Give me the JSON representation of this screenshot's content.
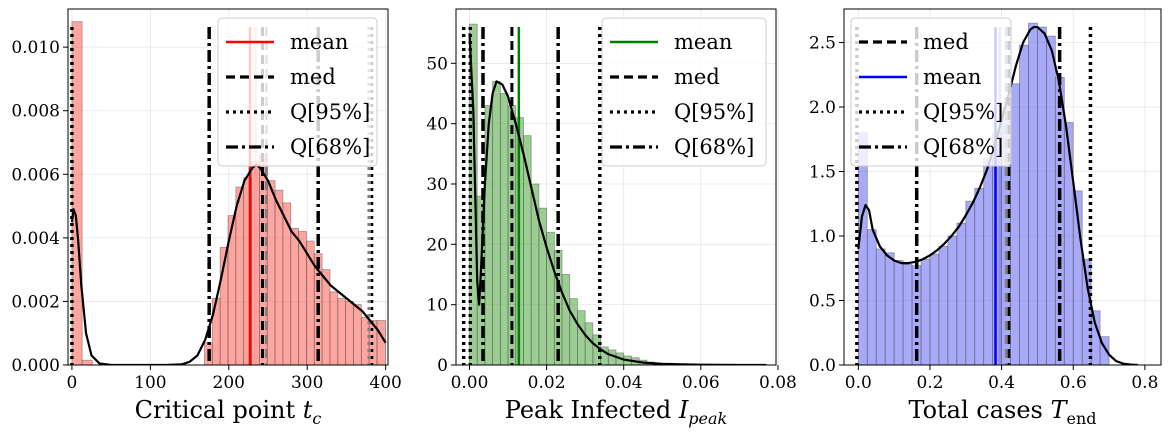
{
  "chart_data": [
    {
      "type": "histogram",
      "xlabel_main": "Critical point ",
      "xlabel_sym": "t",
      "xlabel_sub": "c",
      "xlim": [
        -5,
        403
      ],
      "ylim": [
        0,
        0.0112
      ],
      "xticks": [
        0,
        100,
        200,
        300,
        400
      ],
      "xtick_labels": [
        "0",
        "100",
        "200",
        "300",
        "400"
      ],
      "yticks": [
        0,
        0.002,
        0.004,
        0.006,
        0.008,
        0.01
      ],
      "ytick_labels": [
        "0.000",
        "0.002",
        "0.004",
        "0.006",
        "0.008",
        "0.010"
      ],
      "grid": true,
      "color": "#ff6961",
      "bins": [
        {
          "x0": 0,
          "x1": 13,
          "y": 0.0108
        },
        {
          "x0": 13,
          "x1": 26,
          "y": 0.00015
        },
        {
          "x0": 169,
          "x1": 179,
          "y": 0.0007
        },
        {
          "x0": 179,
          "x1": 189,
          "y": 0.0021
        },
        {
          "x0": 189,
          "x1": 199,
          "y": 0.0037
        },
        {
          "x0": 199,
          "x1": 209,
          "y": 0.0047
        },
        {
          "x0": 209,
          "x1": 219,
          "y": 0.0056
        },
        {
          "x0": 219,
          "x1": 229,
          "y": 0.0059
        },
        {
          "x0": 229,
          "x1": 239,
          "y": 0.0064
        },
        {
          "x0": 239,
          "x1": 249,
          "y": 0.0066
        },
        {
          "x0": 249,
          "x1": 259,
          "y": 0.0058
        },
        {
          "x0": 259,
          "x1": 269,
          "y": 0.0055
        },
        {
          "x0": 269,
          "x1": 279,
          "y": 0.0051
        },
        {
          "x0": 279,
          "x1": 289,
          "y": 0.0043
        },
        {
          "x0": 289,
          "x1": 299,
          "y": 0.0042
        },
        {
          "x0": 299,
          "x1": 309,
          "y": 0.0039
        },
        {
          "x0": 309,
          "x1": 319,
          "y": 0.0035
        },
        {
          "x0": 319,
          "x1": 329,
          "y": 0.003
        },
        {
          "x0": 329,
          "x1": 339,
          "y": 0.0023
        },
        {
          "x0": 339,
          "x1": 349,
          "y": 0.0021
        },
        {
          "x0": 349,
          "x1": 359,
          "y": 0.002
        },
        {
          "x0": 359,
          "x1": 369,
          "y": 0.0019
        },
        {
          "x0": 369,
          "x1": 379,
          "y": 0.0015
        },
        {
          "x0": 379,
          "x1": 389,
          "y": 0.0014
        },
        {
          "x0": 389,
          "x1": 400,
          "y": 0.0014
        }
      ],
      "kde": {
        "x": [
          0,
          2,
          5,
          8,
          12,
          18,
          25,
          35,
          50,
          80,
          120,
          140,
          150,
          160,
          170,
          180,
          190,
          200,
          210,
          220,
          230,
          235,
          240,
          250,
          260,
          270,
          280,
          290,
          300,
          310,
          320,
          330,
          340,
          350,
          360,
          370,
          380,
          390,
          400
        ],
        "y": [
          0.0045,
          0.0049,
          0.0047,
          0.0039,
          0.0025,
          0.001,
          0.0003,
          5e-05,
          0,
          0,
          0,
          2e-05,
          0.0001,
          0.0003,
          0.0008,
          0.0016,
          0.0027,
          0.0039,
          0.005,
          0.0058,
          0.0062,
          0.0063,
          0.0062,
          0.0058,
          0.0052,
          0.0047,
          0.0042,
          0.0039,
          0.0035,
          0.0031,
          0.0028,
          0.0025,
          0.0023,
          0.0021,
          0.0019,
          0.0017,
          0.0014,
          0.0011,
          0.0007
        ]
      },
      "vlines": [
        {
          "kind": "mean",
          "x": 227,
          "color": "#ff0000"
        },
        {
          "kind": "mean-faint",
          "x": 234,
          "color": "#ff9a9a"
        },
        {
          "kind": "med",
          "x": 243
        },
        {
          "kind": "q95",
          "x": 0
        },
        {
          "kind": "q95",
          "x": 382
        },
        {
          "kind": "q95-faint",
          "x": 379
        },
        {
          "kind": "q68",
          "x": 175
        },
        {
          "kind": "q68",
          "x": 314
        },
        {
          "kind": "med-faint",
          "x": 248
        }
      ],
      "legend": {
        "position": "top-right",
        "entries": [
          {
            "label": "mean",
            "style": "solid",
            "color": "#ff0000"
          },
          {
            "label": "med",
            "style": "dashed",
            "color": "#000000"
          },
          {
            "label": "Q[95%]",
            "style": "dotted",
            "color": "#000000"
          },
          {
            "label": "Q[68%]",
            "style": "dashdot",
            "color": "#000000"
          }
        ]
      }
    },
    {
      "type": "histogram",
      "xlabel_main": "Peak Infected ",
      "xlabel_sym": "I",
      "xlabel_sub": "peak",
      "xlim": [
        -0.0035,
        0.0795
      ],
      "ylim": [
        0,
        59
      ],
      "xticks": [
        0,
        0.02,
        0.04,
        0.06,
        0.08
      ],
      "xtick_labels": [
        "0.00",
        "0.02",
        "0.04",
        "0.06",
        "0.08"
      ],
      "yticks": [
        0,
        10,
        20,
        30,
        40,
        50
      ],
      "ytick_labels": [
        "0",
        "10",
        "20",
        "30",
        "40",
        "50"
      ],
      "grid": true,
      "color": "#5aab4b",
      "bins": [
        {
          "x0": 0,
          "x1": 0.002,
          "y": 56.5
        },
        {
          "x0": 0.002,
          "x1": 0.004,
          "y": 28
        },
        {
          "x0": 0.004,
          "x1": 0.006,
          "y": 43
        },
        {
          "x0": 0.006,
          "x1": 0.008,
          "y": 47
        },
        {
          "x0": 0.008,
          "x1": 0.01,
          "y": 45
        },
        {
          "x0": 0.01,
          "x1": 0.012,
          "y": 43
        },
        {
          "x0": 0.012,
          "x1": 0.014,
          "y": 41
        },
        {
          "x0": 0.014,
          "x1": 0.016,
          "y": 38
        },
        {
          "x0": 0.016,
          "x1": 0.018,
          "y": 30
        },
        {
          "x0": 0.018,
          "x1": 0.02,
          "y": 26
        },
        {
          "x0": 0.02,
          "x1": 0.022,
          "y": 22
        },
        {
          "x0": 0.022,
          "x1": 0.024,
          "y": 19
        },
        {
          "x0": 0.024,
          "x1": 0.026,
          "y": 15
        },
        {
          "x0": 0.026,
          "x1": 0.028,
          "y": 11
        },
        {
          "x0": 0.028,
          "x1": 0.03,
          "y": 9
        },
        {
          "x0": 0.03,
          "x1": 0.032,
          "y": 7
        },
        {
          "x0": 0.032,
          "x1": 0.034,
          "y": 5
        },
        {
          "x0": 0.034,
          "x1": 0.036,
          "y": 3
        },
        {
          "x0": 0.036,
          "x1": 0.038,
          "y": 2.5
        },
        {
          "x0": 0.038,
          "x1": 0.04,
          "y": 2
        },
        {
          "x0": 0.04,
          "x1": 0.042,
          "y": 1.5
        },
        {
          "x0": 0.042,
          "x1": 0.044,
          "y": 1.2
        },
        {
          "x0": 0.044,
          "x1": 0.046,
          "y": 0.8
        },
        {
          "x0": 0.046,
          "x1": 0.048,
          "y": 0.5
        },
        {
          "x0": 0.048,
          "x1": 0.05,
          "y": 0.3
        }
      ],
      "kde": {
        "x": [
          0,
          0.001,
          0.002,
          0.0025,
          0.003,
          0.004,
          0.005,
          0.006,
          0.007,
          0.0085,
          0.01,
          0.012,
          0.014,
          0.016,
          0.018,
          0.02,
          0.022,
          0.024,
          0.026,
          0.028,
          0.03,
          0.032,
          0.034,
          0.036,
          0.04,
          0.045,
          0.05,
          0.055,
          0.06,
          0.065,
          0.07,
          0.077
        ],
        "y": [
          55,
          42,
          14,
          10,
          16,
          30,
          40,
          45,
          47,
          46.5,
          44.5,
          40,
          35,
          29.5,
          24,
          19.5,
          15.5,
          12,
          9,
          6.8,
          5,
          3.6,
          2.6,
          1.8,
          0.9,
          0.4,
          0.2,
          0.1,
          0.05,
          0.02,
          0.01,
          0
        ]
      },
      "vlines": [
        {
          "kind": "mean",
          "x": 0.0128,
          "color": "#008000"
        },
        {
          "kind": "med",
          "x": 0.011
        },
        {
          "kind": "q95",
          "x": -0.0015
        },
        {
          "kind": "q95",
          "x": 0.0338
        },
        {
          "kind": "q95",
          "x": 0.0002
        },
        {
          "kind": "q68",
          "x": 0.0035
        },
        {
          "kind": "q68",
          "x": 0.023
        }
      ],
      "legend": {
        "position": "top-right",
        "entries": [
          {
            "label": "mean",
            "style": "solid",
            "color": "#008000"
          },
          {
            "label": "med",
            "style": "dashed",
            "color": "#000000"
          },
          {
            "label": "Q[95%]",
            "style": "dotted",
            "color": "#000000"
          },
          {
            "label": "Q[68%]",
            "style": "dashdot",
            "color": "#000000"
          }
        ]
      }
    },
    {
      "type": "histogram",
      "xlabel_main": "Total cases ",
      "xlabel_sym": "T",
      "xlabel_sub": "end",
      "xlim": [
        -0.04,
        0.845
      ],
      "ylim": [
        0,
        2.76
      ],
      "xticks": [
        0,
        0.2,
        0.4,
        0.6,
        0.8
      ],
      "xtick_labels": [
        "0.0",
        "0.2",
        "0.4",
        "0.6",
        "0.8"
      ],
      "yticks": [
        0,
        0.5,
        1.0,
        1.5,
        2.0,
        2.5
      ],
      "ytick_labels": [
        "0.0",
        "0.5",
        "1.0",
        "1.5",
        "2.0",
        "2.5"
      ],
      "grid": true,
      "color": "#6f6ff6",
      "bins": [
        {
          "x0": 0,
          "x1": 0.025,
          "y": 1.8
        },
        {
          "x0": 0.025,
          "x1": 0.05,
          "y": 1.05
        },
        {
          "x0": 0.05,
          "x1": 0.075,
          "y": 0.9
        },
        {
          "x0": 0.075,
          "x1": 0.1,
          "y": 0.87
        },
        {
          "x0": 0.1,
          "x1": 0.125,
          "y": 0.81
        },
        {
          "x0": 0.125,
          "x1": 0.15,
          "y": 0.78
        },
        {
          "x0": 0.15,
          "x1": 0.175,
          "y": 0.77
        },
        {
          "x0": 0.175,
          "x1": 0.2,
          "y": 0.82
        },
        {
          "x0": 0.2,
          "x1": 0.225,
          "y": 0.86
        },
        {
          "x0": 0.225,
          "x1": 0.25,
          "y": 0.92
        },
        {
          "x0": 0.25,
          "x1": 0.275,
          "y": 1.0
        },
        {
          "x0": 0.275,
          "x1": 0.3,
          "y": 1.1
        },
        {
          "x0": 0.3,
          "x1": 0.325,
          "y": 1.27
        },
        {
          "x0": 0.325,
          "x1": 0.35,
          "y": 1.37
        },
        {
          "x0": 0.35,
          "x1": 0.375,
          "y": 1.6
        },
        {
          "x0": 0.375,
          "x1": 0.4,
          "y": 1.8
        },
        {
          "x0": 0.4,
          "x1": 0.425,
          "y": 2.0
        },
        {
          "x0": 0.425,
          "x1": 0.45,
          "y": 2.18
        },
        {
          "x0": 0.45,
          "x1": 0.475,
          "y": 2.48
        },
        {
          "x0": 0.475,
          "x1": 0.5,
          "y": 2.65
        },
        {
          "x0": 0.5,
          "x1": 0.525,
          "y": 2.62
        },
        {
          "x0": 0.525,
          "x1": 0.55,
          "y": 2.55
        },
        {
          "x0": 0.55,
          "x1": 0.575,
          "y": 2.23
        },
        {
          "x0": 0.575,
          "x1": 0.6,
          "y": 1.88
        },
        {
          "x0": 0.6,
          "x1": 0.625,
          "y": 1.35
        },
        {
          "x0": 0.625,
          "x1": 0.65,
          "y": 0.82
        },
        {
          "x0": 0.65,
          "x1": 0.675,
          "y": 0.42
        },
        {
          "x0": 0.675,
          "x1": 0.7,
          "y": 0.22
        }
      ],
      "kde": {
        "x": [
          0,
          0.01,
          0.02,
          0.03,
          0.04,
          0.06,
          0.08,
          0.1,
          0.12,
          0.14,
          0.16,
          0.18,
          0.2,
          0.22,
          0.24,
          0.26,
          0.28,
          0.3,
          0.32,
          0.34,
          0.36,
          0.38,
          0.4,
          0.42,
          0.44,
          0.46,
          0.48,
          0.49,
          0.5,
          0.52,
          0.54,
          0.56,
          0.58,
          0.6,
          0.62,
          0.64,
          0.66,
          0.68,
          0.7,
          0.72,
          0.74,
          0.76,
          0.78
        ],
        "y": [
          0.9,
          1.15,
          1.24,
          1.2,
          1.05,
          0.92,
          0.85,
          0.81,
          0.79,
          0.79,
          0.8,
          0.82,
          0.85,
          0.89,
          0.94,
          1.0,
          1.07,
          1.16,
          1.26,
          1.38,
          1.52,
          1.7,
          1.9,
          2.1,
          2.32,
          2.5,
          2.6,
          2.62,
          2.62,
          2.57,
          2.44,
          2.2,
          1.85,
          1.42,
          0.98,
          0.6,
          0.33,
          0.17,
          0.08,
          0.03,
          0.01,
          0.003,
          0
        ]
      },
      "vlines": [
        {
          "kind": "mean",
          "x": 0.383,
          "color": "#0000ff"
        },
        {
          "kind": "mean-faint",
          "x": 0.395,
          "color": "#7f7ff6"
        },
        {
          "kind": "med",
          "x": 0.42
        },
        {
          "kind": "q95",
          "x": -0.004
        },
        {
          "kind": "q95",
          "x": 0.648
        },
        {
          "kind": "q68",
          "x": 0.163
        },
        {
          "kind": "q68",
          "x": 0.562
        },
        {
          "kind": "med-faint",
          "x": 0.413
        }
      ],
      "legend": {
        "position": "top-left",
        "entries": [
          {
            "label": "med",
            "style": "dashed",
            "color": "#000000"
          },
          {
            "label": "mean",
            "style": "solid",
            "color": "#0000ff"
          },
          {
            "label": "Q[95%]",
            "style": "dotted",
            "color": "#000000"
          },
          {
            "label": "Q[68%]",
            "style": "dashdot",
            "color": "#000000"
          }
        ]
      }
    }
  ]
}
